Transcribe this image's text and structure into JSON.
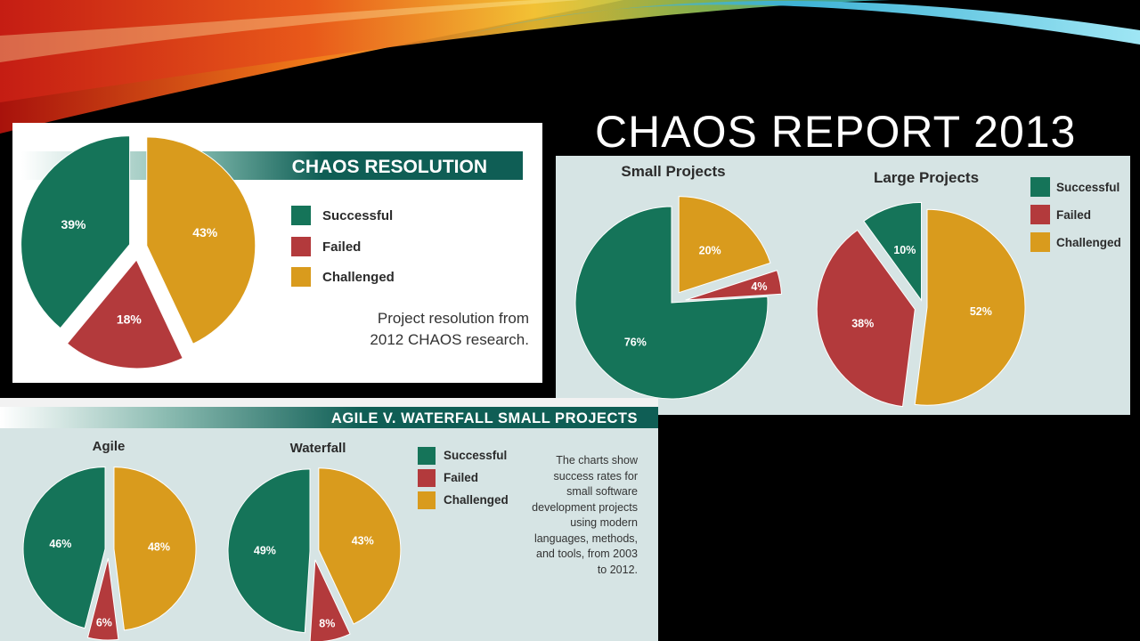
{
  "slide": {
    "title": "CHAOS REPORT 2013"
  },
  "colors": {
    "successful": "#157459",
    "failed": "#b33a3c",
    "challenged": "#d99b1d",
    "banner": "#0f5e55"
  },
  "resolution_panel": {
    "banner": "CHAOS RESOLUTION",
    "legend": [
      "Successful",
      "Failed",
      "Challenged"
    ],
    "note_line1": "Project resolution from",
    "note_line2": "2012 CHAOS research."
  },
  "size_panel": {
    "legend": [
      "Successful",
      "Failed",
      "Challenged"
    ]
  },
  "agile_panel": {
    "banner": "AGILE V. WATERFALL SMALL PROJECTS",
    "legend": [
      "Successful",
      "Failed",
      "Challenged"
    ],
    "note": "The charts show success rates for small software development projects using modern languages, methods, and tools, from 2003 to 2012."
  },
  "chart_data": [
    {
      "type": "pie",
      "title": "",
      "labels": [
        "Successful",
        "Failed",
        "Challenged"
      ],
      "values": [
        39,
        18,
        43
      ],
      "value_labels": [
        "39%",
        "18%",
        "43%"
      ]
    },
    {
      "type": "pie",
      "title": "Small Projects",
      "labels": [
        "Successful",
        "Failed",
        "Challenged"
      ],
      "values": [
        76,
        4,
        20
      ],
      "value_labels": [
        "76%",
        "4%",
        "20%"
      ]
    },
    {
      "type": "pie",
      "title": "Large Projects",
      "labels": [
        "Successful",
        "Failed",
        "Challenged"
      ],
      "values": [
        10,
        38,
        52
      ],
      "value_labels": [
        "10%",
        "38%",
        "52%"
      ]
    },
    {
      "type": "pie",
      "title": "Agile",
      "labels": [
        "Successful",
        "Failed",
        "Challenged"
      ],
      "values": [
        46,
        6,
        48
      ],
      "value_labels": [
        "46%",
        "6%",
        "48%"
      ]
    },
    {
      "type": "pie",
      "title": "Waterfall",
      "labels": [
        "Successful",
        "Failed",
        "Challenged"
      ],
      "values": [
        49,
        8,
        43
      ],
      "value_labels": [
        "49%",
        "8%",
        "43%"
      ]
    }
  ]
}
